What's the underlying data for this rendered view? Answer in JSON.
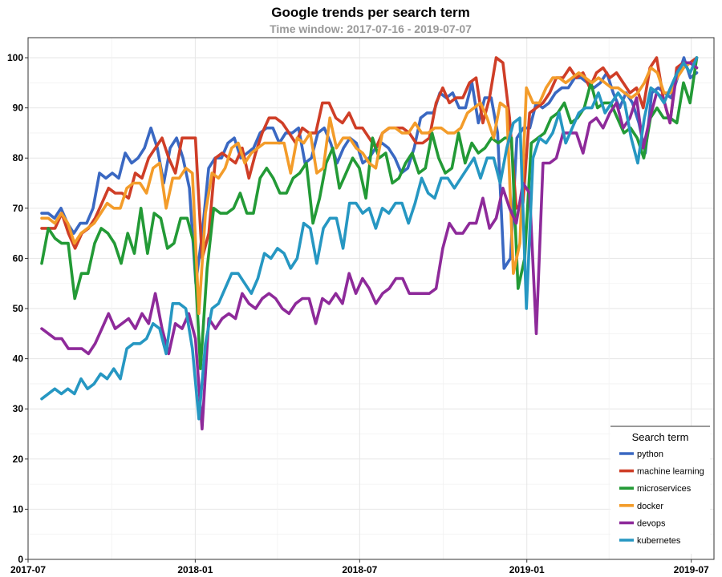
{
  "chart_data": {
    "type": "line",
    "title": "Google trends per search term",
    "subtitle": "Time window: 2017-07-16 - 2019-07-07",
    "xlabel": "",
    "ylabel": "",
    "ylim": [
      0,
      104
    ],
    "xlim": [
      "2017-07-01",
      "2019-07-26"
    ],
    "x_ticks": [
      "2017-07",
      "2018-01",
      "2018-07",
      "2019-01",
      "2019-07"
    ],
    "y_ticks": [
      0,
      10,
      20,
      30,
      40,
      50,
      60,
      70,
      80,
      90,
      100
    ],
    "grid": true,
    "legend": {
      "title": "Search term",
      "placement": "bottom-right"
    },
    "start_date": "2017-07-16",
    "end_date": "2019-07-07",
    "series": [
      {
        "name": "python",
        "color": "#3a68c2",
        "values": [
          69,
          69,
          68,
          70,
          67,
          65,
          67,
          67,
          70,
          77,
          76,
          77,
          76,
          81,
          79,
          80,
          82,
          86,
          82,
          75,
          82,
          84,
          80,
          74,
          55,
          65,
          78,
          80,
          80,
          83,
          84,
          80,
          81,
          82,
          85,
          86,
          86,
          83,
          85,
          85,
          86,
          79,
          80,
          85,
          86,
          83,
          79,
          82,
          84,
          83,
          79,
          80,
          82,
          83,
          82,
          80,
          77,
          78,
          82,
          88,
          89,
          89,
          93,
          92,
          93,
          90,
          90,
          95,
          87,
          92,
          92,
          85,
          58,
          60,
          84,
          86,
          86,
          91,
          90,
          91,
          93,
          94,
          94,
          96,
          96,
          95,
          94,
          95,
          97,
          93,
          90,
          93,
          91,
          87,
          81,
          93,
          94,
          93,
          92,
          96,
          100,
          96,
          97
        ]
      },
      {
        "name": "machine learning",
        "color": "#cf3e27",
        "values": [
          66,
          66,
          66,
          69,
          65,
          62,
          65,
          66,
          68,
          71,
          74,
          73,
          73,
          72,
          77,
          76,
          80,
          82,
          84,
          80,
          77,
          84,
          84,
          84,
          60,
          65,
          80,
          81,
          80,
          79,
          82,
          76,
          81,
          85,
          88,
          88,
          87,
          85,
          83,
          86,
          85,
          85,
          91,
          91,
          88,
          87,
          89,
          86,
          86,
          84,
          82,
          85,
          86,
          86,
          86,
          85,
          83,
          83,
          84,
          91,
          94,
          91,
          92,
          92,
          95,
          96,
          87,
          92,
          100,
          99,
          88,
          70,
          71,
          89,
          90,
          91,
          93,
          96,
          96,
          98,
          96,
          97,
          94,
          97,
          98,
          96,
          97,
          95,
          93,
          94,
          90,
          98,
          100,
          92,
          87,
          98,
          99,
          99,
          100
        ]
      },
      {
        "name": "microservices",
        "color": "#239a36",
        "values": [
          59,
          66,
          64,
          63,
          63,
          52,
          57,
          57,
          63,
          66,
          65,
          63,
          59,
          65,
          61,
          70,
          61,
          69,
          68,
          62,
          63,
          68,
          68,
          63,
          38,
          58,
          70,
          69,
          69,
          70,
          73,
          69,
          69,
          76,
          78,
          76,
          73,
          73,
          76,
          77,
          79,
          67,
          72,
          79,
          82,
          74,
          77,
          80,
          78,
          72,
          84,
          80,
          81,
          75,
          76,
          79,
          81,
          77,
          78,
          85,
          80,
          77,
          78,
          85,
          79,
          83,
          81,
          82,
          84,
          83,
          84,
          84,
          54,
          60,
          83,
          84,
          85,
          88,
          89,
          91,
          87,
          88,
          90,
          95,
          90,
          91,
          91,
          88,
          85,
          86,
          84,
          80,
          88,
          90,
          88,
          88,
          87,
          95,
          91,
          100
        ]
      },
      {
        "name": "docker",
        "color": "#f39c2a",
        "values": [
          68,
          68,
          67,
          69,
          67,
          63,
          65,
          66,
          67,
          69,
          71,
          70,
          70,
          74,
          75,
          75,
          73,
          78,
          79,
          70,
          76,
          76,
          78,
          77,
          49,
          69,
          77,
          76,
          78,
          82,
          83,
          79,
          81,
          82,
          83,
          83,
          83,
          83,
          77,
          84,
          83,
          85,
          77,
          78,
          88,
          82,
          84,
          84,
          82,
          81,
          79,
          78,
          85,
          86,
          86,
          85,
          85,
          87,
          85,
          85,
          86,
          86,
          85,
          85,
          86,
          89,
          90,
          91,
          88,
          84,
          91,
          90,
          57,
          63,
          94,
          91,
          91,
          94,
          96,
          96,
          95,
          96,
          97,
          96,
          95,
          96,
          95,
          94,
          94,
          93,
          92,
          93,
          95,
          98,
          97,
          93,
          93,
          96,
          98,
          99,
          98
        ]
      },
      {
        "name": "devops",
        "color": "#8e2a9a",
        "values": [
          46,
          45,
          44,
          44,
          42,
          42,
          42,
          41,
          43,
          46,
          49,
          46,
          47,
          48,
          46,
          49,
          47,
          53,
          46,
          41,
          47,
          46,
          49,
          44,
          26,
          48,
          46,
          48,
          49,
          48,
          53,
          51,
          50,
          52,
          53,
          52,
          50,
          49,
          51,
          52,
          52,
          47,
          52,
          51,
          53,
          51,
          57,
          53,
          56,
          54,
          51,
          53,
          54,
          56,
          56,
          53,
          53,
          53,
          53,
          54,
          62,
          67,
          65,
          65,
          67,
          67,
          72,
          66,
          68,
          74,
          70,
          67,
          75,
          73,
          45,
          79,
          79,
          80,
          85,
          85,
          85,
          81,
          87,
          88,
          86,
          89,
          91,
          86,
          88,
          92,
          82,
          88,
          93,
          92,
          87,
          97,
          99,
          99,
          98
        ]
      },
      {
        "name": "kubernetes",
        "color": "#2697c2",
        "values": [
          32,
          33,
          34,
          33,
          34,
          33,
          36,
          34,
          35,
          37,
          36,
          38,
          36,
          42,
          43,
          43,
          44,
          47,
          46,
          41,
          51,
          51,
          50,
          42,
          28,
          43,
          50,
          51,
          54,
          57,
          57,
          55,
          53,
          56,
          61,
          60,
          62,
          61,
          58,
          60,
          67,
          66,
          59,
          66,
          68,
          68,
          62,
          71,
          71,
          69,
          70,
          66,
          70,
          69,
          71,
          71,
          67,
          71,
          76,
          73,
          72,
          76,
          76,
          74,
          76,
          78,
          80,
          76,
          80,
          80,
          75,
          82,
          87,
          88,
          50,
          80,
          84,
          83,
          85,
          89,
          83,
          86,
          89,
          90,
          90,
          93,
          89,
          91,
          93,
          91,
          84,
          79,
          88,
          94,
          93,
          91,
          94,
          97,
          99,
          97,
          100
        ]
      }
    ]
  }
}
